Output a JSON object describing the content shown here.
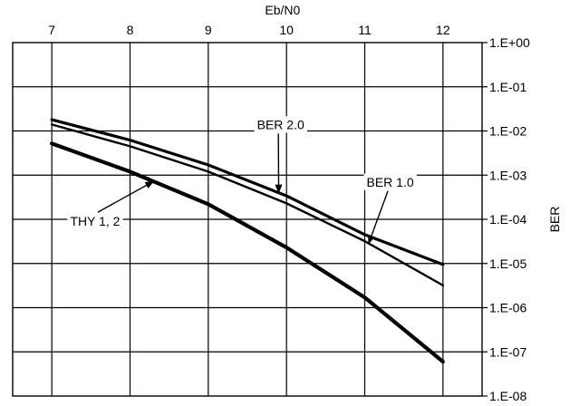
{
  "chart_data": {
    "type": "line",
    "xlabel": "Eb/N0",
    "ylabel": "BER",
    "x_ticks": [
      "7",
      "8",
      "9",
      "10",
      "11",
      "12"
    ],
    "y_ticks": [
      "1.E+00",
      "1.E-01",
      "1.E-02",
      "1.E-03",
      "1.E-04",
      "1.E-05",
      "1.E-06",
      "1.E-07",
      "1.E-08"
    ],
    "xlim": [
      6.5,
      12.5
    ],
    "ylim_log10": [
      -8,
      0
    ],
    "y_scale": "log",
    "grid": true,
    "x_axis_position": "top",
    "y_axis_position": "right",
    "series": [
      {
        "name": "BER 2.0",
        "x": [
          7,
          8,
          9,
          10,
          11,
          12
        ],
        "y": [
          0.018,
          0.0062,
          0.0017,
          0.00034,
          4.5e-05,
          9.5e-06
        ]
      },
      {
        "name": "BER 1.0",
        "x": [
          7,
          8,
          9,
          10,
          11,
          12
        ],
        "y": [
          0.014,
          0.0045,
          0.0012,
          0.00023,
          3.2e-05,
          3.2e-06
        ]
      },
      {
        "name": "THY 1, 2",
        "x": [
          7,
          8,
          9,
          10,
          11,
          12
        ],
        "y": [
          0.0052,
          0.0012,
          0.00022,
          2.3e-05,
          1.7e-06,
          6e-08
        ]
      }
    ],
    "annotations": [
      {
        "text": "BER 2.0",
        "series": "BER 2.0",
        "target_x": 9.9,
        "label_x": 9.6,
        "label_y": 0.014
      },
      {
        "text": "BER 1.0",
        "series": "BER 1.0",
        "target_x": 11.05,
        "label_x": 11.0,
        "label_y": 0.0007
      },
      {
        "text": "THY 1, 2",
        "series": "THY 1, 2",
        "target_x": 8.3,
        "label_x": 7.6,
        "label_y": 9e-05
      }
    ]
  }
}
